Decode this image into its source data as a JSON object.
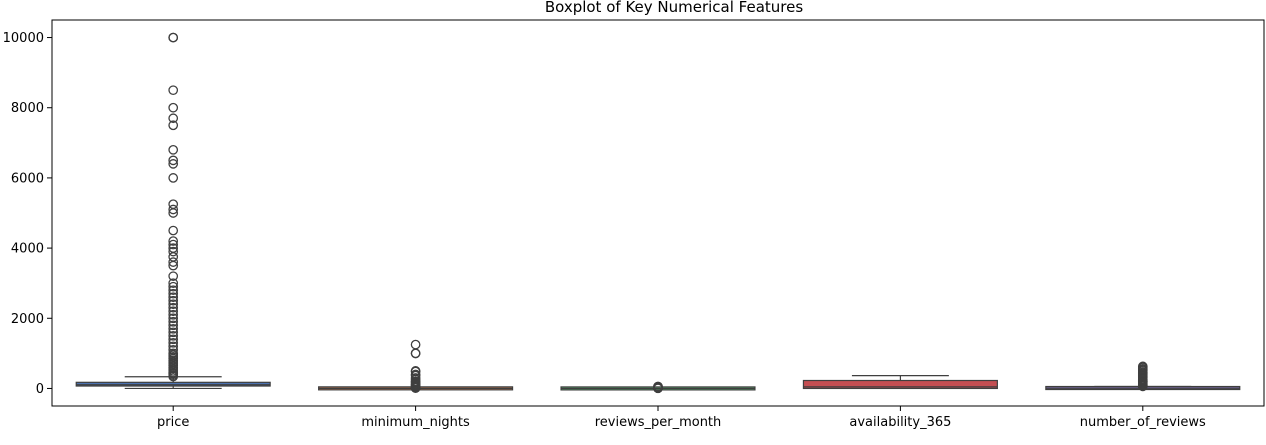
{
  "chart_data": {
    "type": "box",
    "title": "Boxplot of Key Numerical Features",
    "xlabel": "",
    "ylabel": "",
    "ylim": [
      -500,
      10500
    ],
    "yticks": [
      0,
      2000,
      4000,
      6000,
      8000,
      10000
    ],
    "ytick_labels": [
      "0",
      "2000",
      "4000",
      "6000",
      "8000",
      "10000"
    ],
    "grid": false,
    "categories": [
      "price",
      "minimum_nights",
      "reviews_per_month",
      "availability_365",
      "number_of_reviews"
    ],
    "boxes": [
      {
        "name": "price",
        "color": "#4c72b0",
        "whisker_low": 0,
        "q1": 69,
        "median": 106,
        "q3": 175,
        "whisker_high": 334,
        "outliers": [
          340,
          380,
          420,
          450,
          500,
          550,
          600,
          650,
          700,
          750,
          800,
          850,
          900,
          950,
          1000,
          1100,
          1200,
          1300,
          1400,
          1500,
          1600,
          1700,
          1800,
          1900,
          2000,
          2100,
          2200,
          2300,
          2400,
          2500,
          2600,
          2700,
          2800,
          2900,
          3000,
          3200,
          3500,
          3600,
          3750,
          3900,
          4000,
          4100,
          4200,
          4500,
          5000,
          5100,
          5250,
          6000,
          6400,
          6500,
          6800,
          7500,
          7700,
          8000,
          8500,
          9999,
          10000
        ]
      },
      {
        "name": "minimum_nights",
        "color": "#dd8452",
        "whisker_low": 1,
        "q1": 1,
        "median": 3,
        "q3": 5,
        "whisker_high": 11,
        "outliers": [
          12,
          14,
          20,
          25,
          30,
          45,
          60,
          90,
          100,
          120,
          150,
          180,
          200,
          250,
          300,
          365,
          400,
          480,
          500,
          999,
          1000,
          1250
        ]
      },
      {
        "name": "reviews_per_month",
        "color": "#55a868",
        "whisker_low": 0.01,
        "q1": 0.19,
        "median": 0.72,
        "q3": 2.02,
        "whisker_high": 4.6,
        "outliers": [
          5,
          7,
          10,
          15,
          20,
          30,
          40,
          50,
          58
        ]
      },
      {
        "name": "availability_365",
        "color": "#c44e52",
        "whisker_low": 0,
        "q1": 0,
        "median": 45,
        "q3": 227,
        "whisker_high": 365,
        "outliers": []
      },
      {
        "name": "number_of_reviews",
        "color": "#8172b3",
        "whisker_low": 0,
        "q1": 1,
        "median": 5,
        "q3": 24,
        "whisker_high": 58,
        "outliers": [
          60,
          80,
          100,
          120,
          150,
          180,
          200,
          230,
          260,
          300,
          330,
          360,
          400,
          430,
          460,
          500,
          530,
          560,
          600,
          629
        ]
      }
    ]
  }
}
